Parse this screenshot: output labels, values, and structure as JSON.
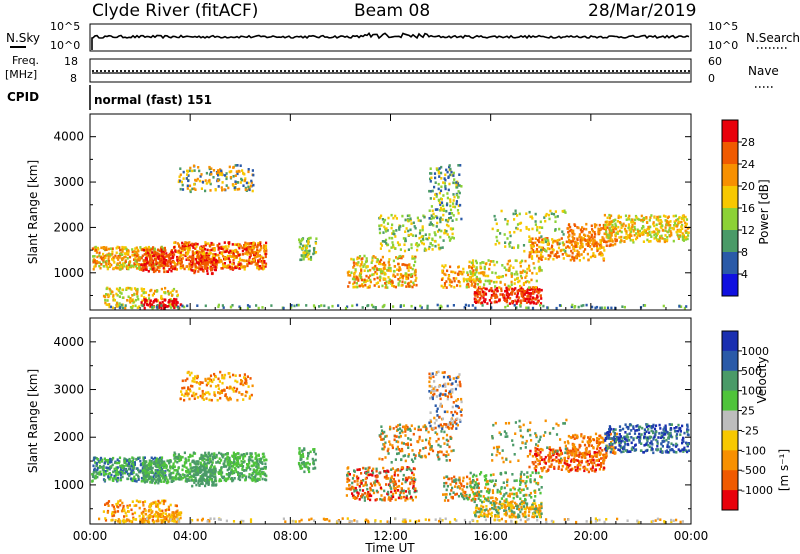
{
  "header": {
    "station": "Clyde River (fitACF)",
    "beam": "Beam 08",
    "date": "28/Mar/2019"
  },
  "top_panels": {
    "nsky_label": "N.Sky",
    "nsky_ticks": [
      "10^5",
      "10^0"
    ],
    "nsearch_label": "N.Search",
    "nsearch_ticks": [
      "10^5",
      "10^0"
    ],
    "freq_label": "Freq.",
    "freq_unit": "[MHz]",
    "freq_ticks": [
      "18",
      "8"
    ],
    "nave_label": "Nave",
    "nave_ticks": [
      "60",
      "0"
    ],
    "cpid_label": "CPID",
    "cpid_value": "normal (fast) 151"
  },
  "chart_data": [
    {
      "type": "heatmap",
      "panel": "power",
      "ylabel": "Slant Range [km]",
      "xlabel": "",
      "ylim": [
        180,
        4500
      ],
      "xlim": [
        "00:00",
        "24:00"
      ],
      "yticks": [
        "1000",
        "2000",
        "3000",
        "4000"
      ],
      "colorbar": {
        "label": "Power [dB]",
        "ticks": [
          "28",
          "24",
          "20",
          "16",
          "12",
          "8",
          "4"
        ],
        "colors": [
          "#e8000b",
          "#f05a00",
          "#f79000",
          "#f7c800",
          "#8cd236",
          "#4a9a68",
          "#2a5aa8",
          "#1010e0"
        ]
      }
    },
    {
      "type": "heatmap",
      "panel": "velocity",
      "ylabel": "Slant Range [km]",
      "xlabel": "Time UT",
      "ylim": [
        180,
        4500
      ],
      "xlim": [
        "00:00",
        "24:00"
      ],
      "yticks": [
        "1000",
        "2000",
        "3000",
        "4000"
      ],
      "xticks": [
        "00:00",
        "04:00",
        "08:00",
        "12:00",
        "16:00",
        "20:00",
        "00:00"
      ],
      "colorbar": {
        "label": "Velocity",
        "unit": "[m s⁻¹]",
        "ticks": [
          "1000",
          "500",
          "100",
          "25",
          "-25",
          "-100",
          "-500",
          "-1000"
        ],
        "colors": [
          "#1a2fb0",
          "#2a5aa8",
          "#4a9a68",
          "#4fc43a",
          "#bdbdbd",
          "#f7c800",
          "#f79000",
          "#f05a00",
          "#e8000b"
        ]
      }
    }
  ]
}
